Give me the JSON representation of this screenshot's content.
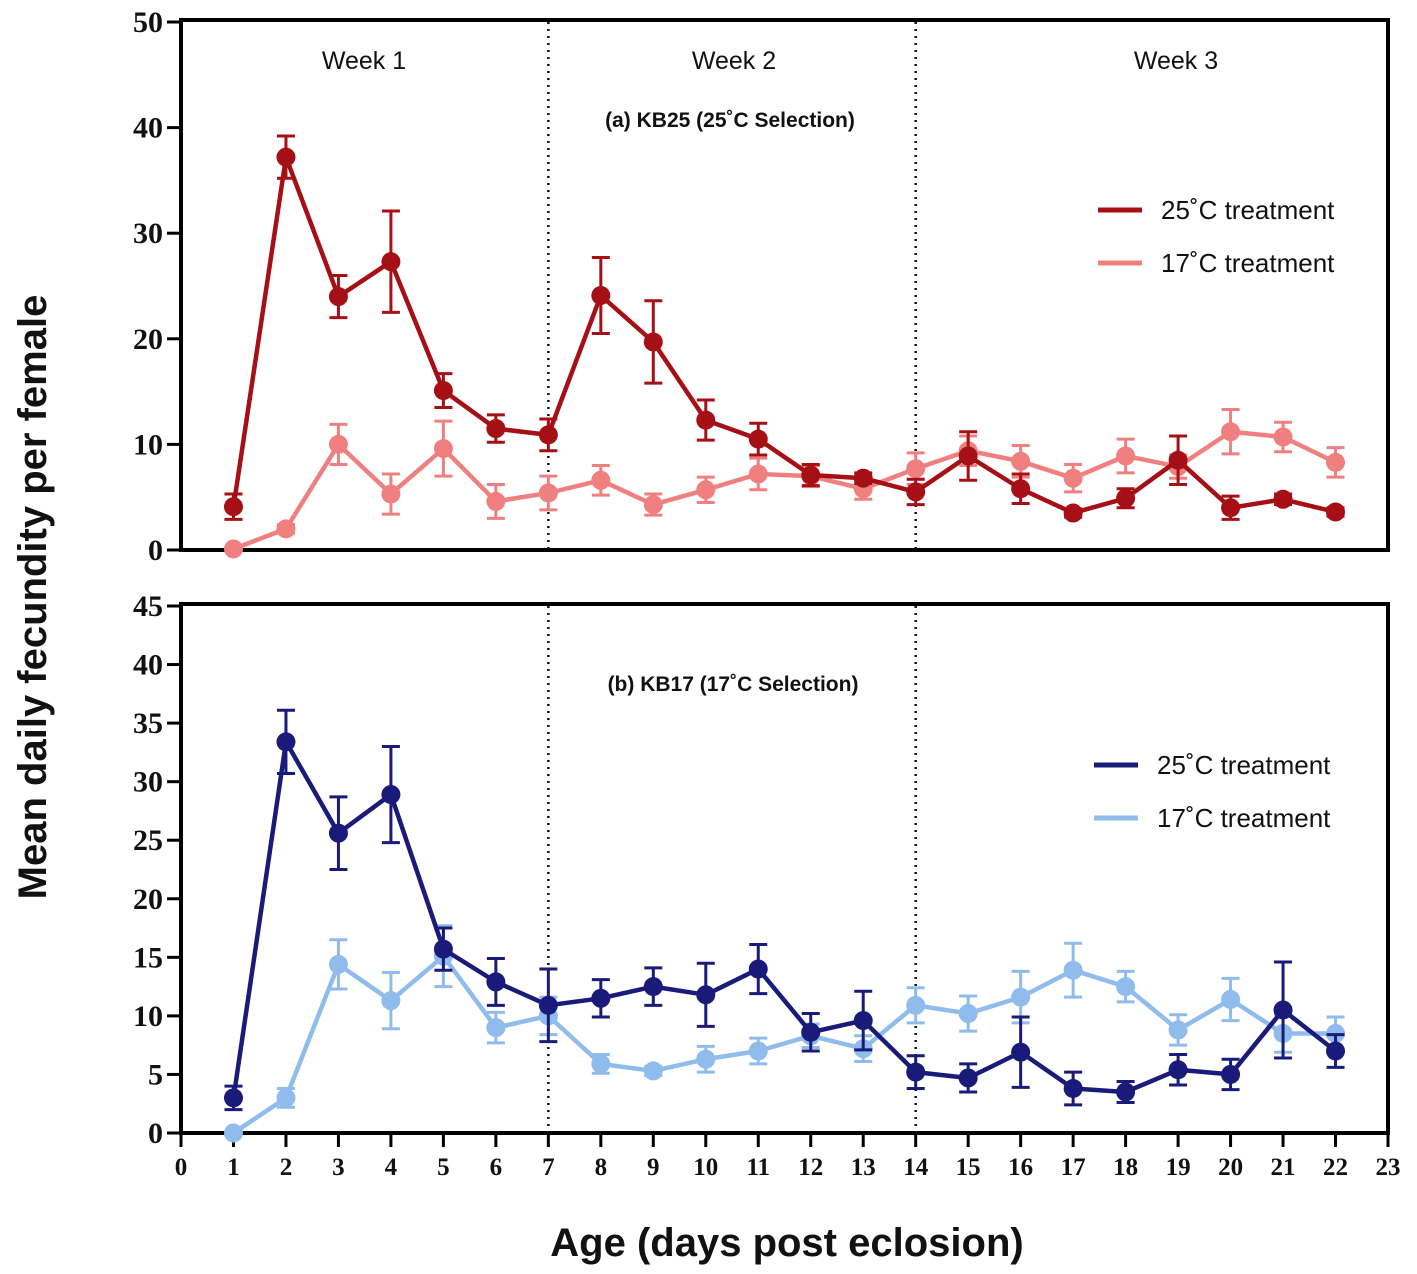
{
  "chart_data": [
    {
      "type": "line",
      "title": "(a) KB25 (25˚C Selection)",
      "xlabel": "Age (days post eclosion)",
      "ylabel": "Mean daily fecundity per female",
      "xlim": [
        0,
        23
      ],
      "ylim": [
        0,
        50
      ],
      "yticks": [
        0,
        10,
        20,
        30,
        40,
        50
      ],
      "week_dividers": [
        7,
        14
      ],
      "week_labels": [
        {
          "label": "Week 1",
          "x": 3.5
        },
        {
          "label": "Week 2",
          "x": 10.5
        },
        {
          "label": "Week 3",
          "x": 18.5
        }
      ],
      "legend_position": "right",
      "x": [
        1,
        2,
        3,
        4,
        5,
        6,
        7,
        8,
        9,
        10,
        11,
        12,
        13,
        14,
        15,
        16,
        17,
        18,
        19,
        20,
        21,
        22
      ],
      "series": [
        {
          "name": "25˚C treatment",
          "color": "#a50f15",
          "values": [
            4.1,
            37.2,
            24.0,
            27.3,
            15.1,
            11.5,
            10.9,
            24.1,
            19.7,
            12.3,
            10.5,
            7.1,
            6.8,
            5.5,
            8.9,
            5.8,
            3.5,
            4.9,
            8.5,
            4.0,
            4.8,
            3.6
          ],
          "errors": [
            1.2,
            2.0,
            2.0,
            4.8,
            1.6,
            1.3,
            1.5,
            3.6,
            3.9,
            1.9,
            1.5,
            1.0,
            0.5,
            1.2,
            2.3,
            1.4,
            0.4,
            0.9,
            2.3,
            1.1,
            0.5,
            0.4
          ]
        },
        {
          "name": "17˚C treatment",
          "color": "#f08080",
          "values": [
            0.1,
            2.0,
            10.0,
            5.3,
            9.6,
            4.6,
            5.4,
            6.6,
            4.3,
            5.7,
            7.2,
            7.0,
            5.8,
            7.7,
            9.4,
            8.4,
            6.8,
            8.9,
            7.9,
            11.2,
            10.7,
            8.3
          ],
          "errors": [
            0.1,
            0.4,
            1.9,
            1.9,
            2.6,
            1.6,
            1.6,
            1.4,
            1.0,
            1.2,
            1.5,
            1.0,
            1.0,
            1.5,
            1.4,
            1.5,
            1.3,
            1.6,
            1.1,
            2.1,
            1.4,
            1.4
          ]
        }
      ]
    },
    {
      "type": "line",
      "title": "(b) KB17 (17˚C Selection)",
      "xlabel": "Age (days post eclosion)",
      "ylabel": "Mean daily fecundity per female",
      "xlim": [
        0,
        23
      ],
      "ylim": [
        0,
        45
      ],
      "yticks": [
        0,
        5,
        10,
        15,
        20,
        25,
        30,
        35,
        40,
        45
      ],
      "xticks": [
        0,
        1,
        2,
        3,
        4,
        5,
        6,
        7,
        8,
        9,
        10,
        11,
        12,
        13,
        14,
        15,
        16,
        17,
        18,
        19,
        20,
        21,
        22,
        23
      ],
      "week_dividers": [
        7,
        14
      ],
      "legend_position": "right",
      "x": [
        1,
        2,
        3,
        4,
        5,
        6,
        7,
        8,
        9,
        10,
        11,
        12,
        13,
        14,
        15,
        16,
        17,
        18,
        19,
        20,
        21,
        22
      ],
      "series": [
        {
          "name": "25˚C treatment",
          "color": "#1a1a7a",
          "values": [
            3.0,
            33.4,
            25.6,
            28.9,
            15.7,
            12.9,
            10.9,
            11.5,
            12.5,
            11.8,
            14.0,
            8.6,
            9.6,
            5.2,
            4.7,
            6.9,
            3.8,
            3.5,
            5.4,
            5.0,
            10.5,
            7.0
          ],
          "errors": [
            1.0,
            2.7,
            3.1,
            4.1,
            1.8,
            2.0,
            3.1,
            1.6,
            1.6,
            2.7,
            2.1,
            1.6,
            2.5,
            1.4,
            1.2,
            3.0,
            1.4,
            0.9,
            1.3,
            1.3,
            4.1,
            1.4
          ]
        },
        {
          "name": "17˚C treatment",
          "color": "#8fbcec",
          "values": [
            0.0,
            3.0,
            14.4,
            11.3,
            15.1,
            9.0,
            10.0,
            5.9,
            5.3,
            6.3,
            7.0,
            8.3,
            7.2,
            10.9,
            10.2,
            11.6,
            13.9,
            12.5,
            8.8,
            11.4,
            8.5,
            8.5
          ],
          "errors": [
            0.1,
            0.8,
            2.1,
            2.4,
            2.6,
            1.3,
            1.6,
            0.8,
            0.4,
            1.1,
            1.1,
            1.0,
            1.1,
            1.5,
            1.5,
            2.2,
            2.3,
            1.3,
            1.3,
            1.8,
            1.6,
            1.4
          ]
        }
      ]
    }
  ]
}
